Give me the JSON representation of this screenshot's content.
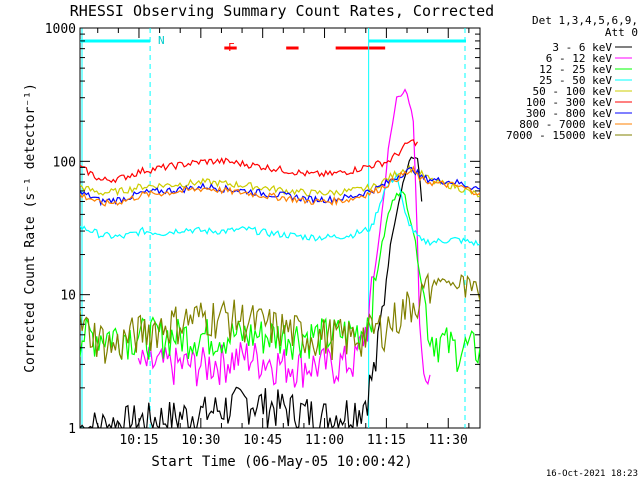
{
  "chart_data": {
    "type": "line",
    "title": "RHESSI Observing Summary Count Rates, Corrected",
    "xlabel": "Start Time (06-May-05 10:00:42)",
    "ylabel": "Corrected Count Rate (s⁻¹ detector⁻¹)",
    "y_scale": "log",
    "ylim": [
      1,
      1000
    ],
    "xlim_minutes": [
      0,
      45
    ],
    "x_ticks": [
      {
        "label": "10:15",
        "min": 15
      },
      {
        "label": "10:30",
        "min": 30
      },
      {
        "label": "10:45",
        "min": 45
      },
      {
        "label": "11:00",
        "min": 60
      },
      {
        "label": "11:15",
        "min": 75
      },
      {
        "label": "11:30",
        "min": 90
      }
    ],
    "y_ticks": [
      {
        "label": "1",
        "value": 1
      },
      {
        "label": "10",
        "value": 10
      },
      {
        "label": "100",
        "value": 100
      },
      {
        "label": "1000",
        "value": 1000
      }
    ],
    "legend_header": [
      "Det 1,3,4,5,6,9,",
      "Att 0"
    ],
    "legend_position": "top-right",
    "timestamp": "16-Oct-2021 18:23",
    "annotations": {
      "night_label": "N",
      "flare_label": "F"
    },
    "series": [
      {
        "name": "3 - 6 keV",
        "color": "#000000",
        "points": [
          [
            0,
            1
          ],
          [
            30,
            1.3
          ],
          [
            40,
            1.6
          ],
          [
            50,
            1.4
          ],
          [
            60,
            1.2
          ],
          [
            68,
            1.5
          ],
          [
            71,
            3
          ],
          [
            73,
            10
          ],
          [
            75,
            30
          ],
          [
            77,
            60
          ],
          [
            79,
            100
          ],
          [
            81,
            110
          ],
          [
            82,
            50
          ]
        ]
      },
      {
        "name": "6 - 12 keV",
        "color": "#ff00ff",
        "points": [
          [
            14,
            3
          ],
          [
            20,
            3
          ],
          [
            30,
            3
          ],
          [
            40,
            3.5
          ],
          [
            50,
            3
          ],
          [
            60,
            3
          ],
          [
            66,
            3.2
          ],
          [
            69,
            6
          ],
          [
            72,
            30
          ],
          [
            74,
            120
          ],
          [
            76,
            300
          ],
          [
            78,
            350
          ],
          [
            80,
            200
          ],
          [
            82,
            3
          ],
          [
            84,
            2.5
          ]
        ]
      },
      {
        "name": "12 - 25 keV",
        "color": "#00ff00",
        "points": [
          [
            0,
            5
          ],
          [
            20,
            5
          ],
          [
            40,
            5
          ],
          [
            60,
            5
          ],
          [
            68,
            5.5
          ],
          [
            70,
            8
          ],
          [
            72,
            20
          ],
          [
            74,
            40
          ],
          [
            76,
            60
          ],
          [
            78,
            55
          ],
          [
            80,
            30
          ],
          [
            84,
            5
          ],
          [
            90,
            4
          ],
          [
            96,
            4
          ]
        ]
      },
      {
        "name": "25 - 50 keV",
        "color": "#00ffff",
        "points": [
          [
            0,
            32
          ],
          [
            3,
            30
          ],
          [
            5,
            28
          ],
          [
            10,
            27
          ],
          [
            15,
            30
          ],
          [
            20,
            29
          ],
          [
            25,
            31
          ],
          [
            30,
            30
          ],
          [
            35,
            30
          ],
          [
            40,
            31
          ],
          [
            45,
            29
          ],
          [
            50,
            28
          ],
          [
            55,
            27
          ],
          [
            60,
            27
          ],
          [
            65,
            28
          ],
          [
            68,
            30
          ],
          [
            70,
            32
          ],
          [
            73,
            60
          ],
          [
            76,
            80
          ],
          [
            78,
            40
          ],
          [
            80,
            30
          ],
          [
            82,
            25
          ],
          [
            85,
            25
          ],
          [
            90,
            26
          ],
          [
            96,
            24
          ]
        ]
      },
      {
        "name": "50 - 100 keV",
        "color": "#cccc00",
        "points": [
          [
            0,
            65
          ],
          [
            3,
            60
          ],
          [
            5,
            58
          ],
          [
            10,
            60
          ],
          [
            15,
            65
          ],
          [
            20,
            66
          ],
          [
            25,
            68
          ],
          [
            30,
            70
          ],
          [
            35,
            68
          ],
          [
            40,
            66
          ],
          [
            45,
            63
          ],
          [
            50,
            60
          ],
          [
            55,
            58
          ],
          [
            60,
            58
          ],
          [
            65,
            60
          ],
          [
            68,
            62
          ],
          [
            71,
            65
          ],
          [
            74,
            75
          ],
          [
            77,
            85
          ],
          [
            79,
            90
          ],
          [
            82,
            80
          ],
          [
            85,
            70
          ],
          [
            90,
            65
          ],
          [
            96,
            55
          ]
        ]
      },
      {
        "name": "100 - 300 keV",
        "color": "#ff0000",
        "points": [
          [
            0,
            90
          ],
          [
            3,
            80
          ],
          [
            5,
            72
          ],
          [
            10,
            75
          ],
          [
            15,
            85
          ],
          [
            20,
            90
          ],
          [
            25,
            95
          ],
          [
            30,
            100
          ],
          [
            35,
            100
          ],
          [
            40,
            95
          ],
          [
            45,
            90
          ],
          [
            50,
            85
          ],
          [
            55,
            80
          ],
          [
            60,
            80
          ],
          [
            65,
            85
          ],
          [
            68,
            90
          ],
          [
            71,
            95
          ],
          [
            74,
            100
          ],
          [
            77,
            120
          ],
          [
            79,
            140
          ],
          [
            81,
            140
          ]
        ]
      },
      {
        "name": "300 - 800 keV",
        "color": "#0000ff",
        "points": [
          [
            0,
            58
          ],
          [
            3,
            54
          ],
          [
            5,
            50
          ],
          [
            10,
            52
          ],
          [
            15,
            58
          ],
          [
            20,
            60
          ],
          [
            25,
            62
          ],
          [
            30,
            65
          ],
          [
            35,
            62
          ],
          [
            40,
            60
          ],
          [
            45,
            57
          ],
          [
            50,
            55
          ],
          [
            55,
            52
          ],
          [
            60,
            52
          ],
          [
            65,
            54
          ],
          [
            68,
            58
          ],
          [
            71,
            62
          ],
          [
            74,
            70
          ],
          [
            77,
            80
          ],
          [
            80,
            88
          ],
          [
            82,
            75
          ],
          [
            86,
            72
          ],
          [
            90,
            70
          ],
          [
            96,
            62
          ]
        ]
      },
      {
        "name": "800 - 7000 keV",
        "color": "#ff8000",
        "points": [
          [
            0,
            56
          ],
          [
            3,
            52
          ],
          [
            5,
            48
          ],
          [
            10,
            50
          ],
          [
            15,
            56
          ],
          [
            20,
            58
          ],
          [
            25,
            60
          ],
          [
            30,
            63
          ],
          [
            35,
            60
          ],
          [
            40,
            58
          ],
          [
            45,
            55
          ],
          [
            50,
            53
          ],
          [
            55,
            50
          ],
          [
            60,
            50
          ],
          [
            65,
            52
          ],
          [
            68,
            56
          ],
          [
            71,
            60
          ],
          [
            74,
            68
          ],
          [
            77,
            78
          ],
          [
            80,
            85
          ],
          [
            82,
            72
          ],
          [
            86,
            68
          ],
          [
            90,
            66
          ],
          [
            96,
            58
          ]
        ]
      },
      {
        "name": "7000 - 15000 keV",
        "color": "#808000",
        "points": [
          [
            0,
            6
          ],
          [
            4,
            5
          ],
          [
            8,
            4
          ],
          [
            12,
            5
          ],
          [
            16,
            5.5
          ],
          [
            20,
            6
          ],
          [
            25,
            6.5
          ],
          [
            30,
            7
          ],
          [
            35,
            7
          ],
          [
            40,
            6.5
          ],
          [
            45,
            6
          ],
          [
            50,
            5.5
          ],
          [
            55,
            5
          ],
          [
            60,
            5
          ],
          [
            65,
            4.8
          ],
          [
            68,
            5
          ],
          [
            71,
            5.5
          ],
          [
            74,
            6
          ],
          [
            78,
            8
          ],
          [
            82,
            10
          ],
          [
            86,
            13
          ],
          [
            90,
            12
          ],
          [
            96,
            9
          ]
        ]
      }
    ],
    "status_bars": [
      {
        "label": "night",
        "color": "#00ffff",
        "spans_min": [
          [
            0,
            17
          ],
          [
            70,
            92
          ]
        ]
      },
      {
        "label": "flare",
        "color": "#ff0000",
        "spans_min": [
          [
            35,
            38
          ],
          [
            50,
            53
          ],
          [
            62,
            74
          ]
        ]
      }
    ],
    "vertical_markers_min": [
      0,
      17,
      70,
      92
    ]
  }
}
